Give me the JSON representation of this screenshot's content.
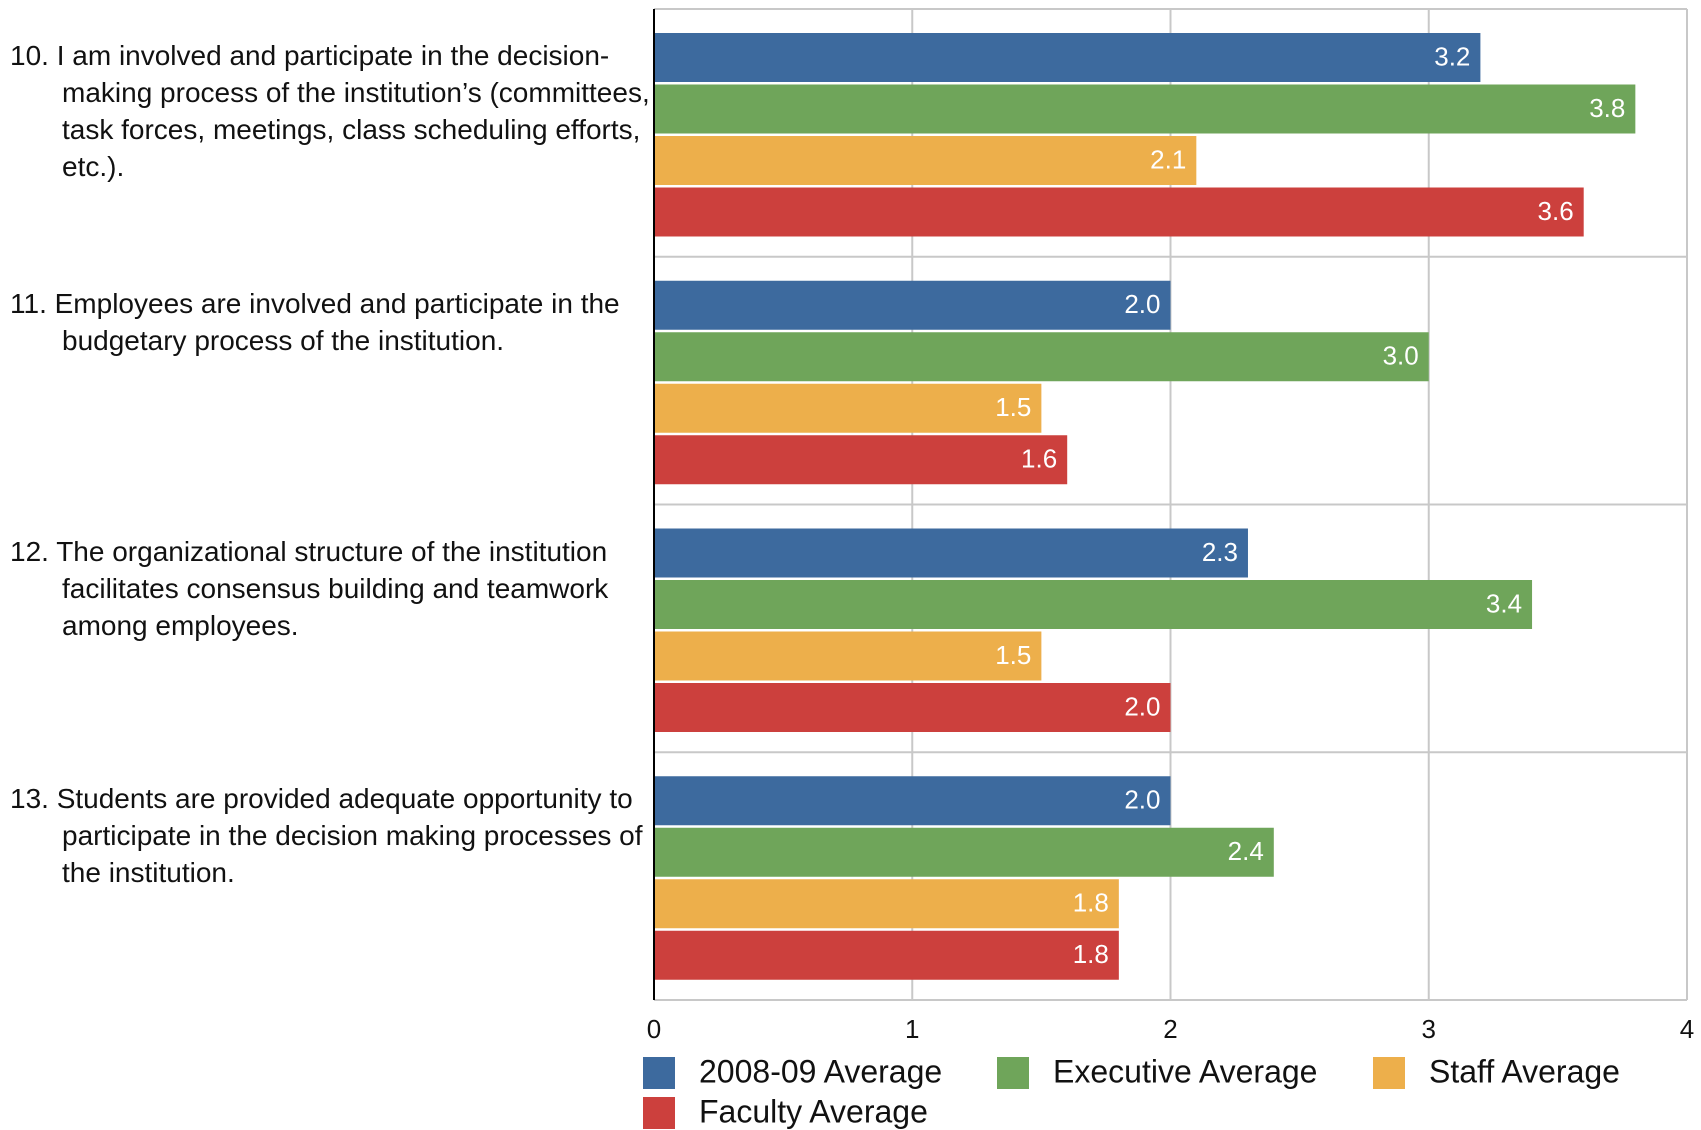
{
  "chart_data": {
    "type": "barh",
    "categories": [
      "10. I am involved and participate in the decision-making process of the institution’s (committees, task forces, meetings, class scheduling efforts, etc.).",
      "11. Employees are involved and participate in the budgetary process of the institution.",
      "12. The organizational structure of the institution facilitates consensus building and teamwork among employees.",
      "13. Students are provided adequate opportunity to participate in the decision making processes of the institution."
    ],
    "series": [
      {
        "name": "2008-09 Average",
        "color": "#3d6a9e",
        "values": [
          3.2,
          2.0,
          2.3,
          2.0
        ],
        "value_labels": [
          "3.2",
          "2.0",
          "2.3",
          "2.0"
        ]
      },
      {
        "name": "Executive Average",
        "color": "#6fa55a",
        "values": [
          3.8,
          3.0,
          3.4,
          2.4
        ],
        "value_labels": [
          "3.8",
          "3.0",
          "3.4",
          "2.4"
        ]
      },
      {
        "name": "Staff Average",
        "color": "#edaf4b",
        "values": [
          2.1,
          1.5,
          1.5,
          1.8
        ],
        "value_labels": [
          "2.1",
          "1.5",
          "1.5",
          "1.8"
        ]
      },
      {
        "name": "Faculty Average",
        "color": "#cc403d",
        "values": [
          3.6,
          1.6,
          2.0,
          1.8
        ],
        "value_labels": [
          "3.6",
          "1.6",
          "2.0",
          "1.8"
        ]
      }
    ],
    "xlim": [
      0,
      4
    ],
    "xticks": [
      0,
      1,
      2,
      3,
      4
    ],
    "grid": true,
    "legend": "bottom"
  }
}
